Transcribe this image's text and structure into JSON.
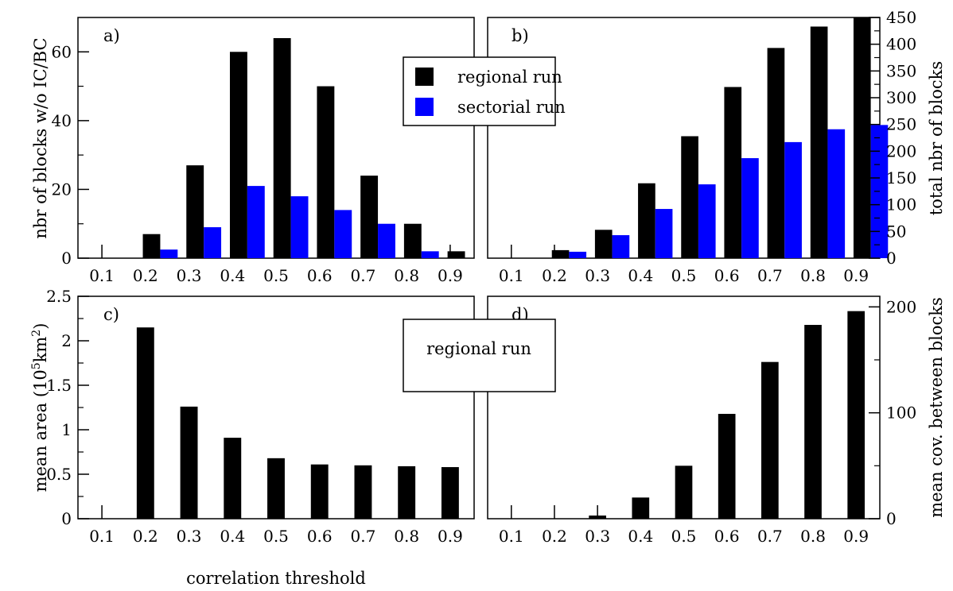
{
  "colors": {
    "regional": "#000000",
    "sectorial": "#0000ff",
    "axis": "#000000"
  },
  "legend_top": {
    "items": [
      "regional run",
      "sectorial run"
    ],
    "placement": "between panels a and b"
  },
  "legend_bottom": {
    "text": "regional run",
    "placement": "between panels c and d"
  },
  "chart_data": [
    {
      "panel": "a)",
      "type": "bar",
      "categories": [
        "0.1",
        "0.2",
        "0.3",
        "0.4",
        "0.5",
        "0.6",
        "0.7",
        "0.8",
        "0.9"
      ],
      "series": [
        {
          "name": "regional run",
          "values": [
            0,
            7,
            27,
            60,
            64,
            50,
            24,
            10,
            2
          ]
        },
        {
          "name": "sectorial run",
          "values": [
            0,
            2.5,
            9,
            21,
            18,
            14,
            10,
            2,
            0
          ]
        }
      ],
      "ylabel": "nbr of blocks w/o IC/BC",
      "ylim": [
        0,
        70
      ],
      "yticks": [
        "0",
        "20",
        "40",
        "60"
      ]
    },
    {
      "panel": "b)",
      "type": "bar",
      "categories": [
        "0.1",
        "0.2",
        "0.3",
        "0.4",
        "0.5",
        "0.6",
        "0.7",
        "0.8",
        "0.9"
      ],
      "series": [
        {
          "name": "regional run",
          "values": [
            0,
            15,
            53,
            140,
            228,
            320,
            393,
            433,
            450
          ]
        },
        {
          "name": "sectorial run",
          "values": [
            0,
            12,
            43,
            92,
            138,
            187,
            217,
            241,
            249
          ]
        }
      ],
      "ylabel": "total nbr of blocks",
      "ylim": [
        0,
        450
      ],
      "yticks": [
        "0",
        "50",
        "100",
        "150",
        "200",
        "250",
        "300",
        "350",
        "400",
        "450"
      ],
      "yaxis_side": "right"
    },
    {
      "panel": "c)",
      "type": "bar",
      "categories": [
        "0.1",
        "0.2",
        "0.3",
        "0.4",
        "0.5",
        "0.6",
        "0.7",
        "0.8",
        "0.9"
      ],
      "series": [
        {
          "name": "regional run",
          "values": [
            0,
            2.15,
            1.26,
            0.91,
            0.68,
            0.61,
            0.6,
            0.59,
            0.58
          ]
        }
      ],
      "ylabel": "mean area (10",
      "ylabel_sup1": "5",
      "ylabel_mid": "km",
      "ylabel_sup2": "2",
      "ylabel_end": ")",
      "xlabel": "correlation threshold",
      "ylim": [
        0,
        2.5
      ],
      "yticks": [
        "0",
        "0.5",
        "1",
        "1.5",
        "2",
        "2.5"
      ]
    },
    {
      "panel": "d)",
      "type": "bar",
      "categories": [
        "0.1",
        "0.2",
        "0.3",
        "0.4",
        "0.5",
        "0.6",
        "0.7",
        "0.8",
        "0.9"
      ],
      "series": [
        {
          "name": "regional run",
          "values": [
            0,
            0,
            3,
            20,
            50,
            99,
            148,
            183,
            196
          ]
        }
      ],
      "ylabel": "mean cov. between blocks",
      "ylim": [
        0,
        210
      ],
      "yticks": [
        "0",
        "100",
        "200"
      ],
      "yaxis_side": "right"
    }
  ]
}
